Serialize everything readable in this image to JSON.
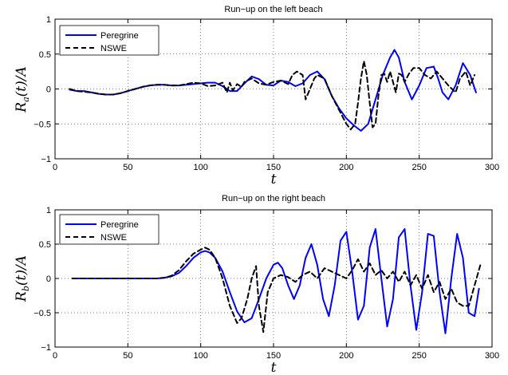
{
  "chart_data": [
    {
      "type": "line",
      "title": "Run−up on the left beach",
      "xlabel": "t",
      "ylabel": "R_a(t)/A",
      "xlim": [
        0,
        300
      ],
      "ylim": [
        -1,
        1
      ],
      "xticks": [
        0,
        50,
        100,
        150,
        200,
        250,
        300
      ],
      "xtick_labels": [
        "0",
        "50",
        "100",
        "150",
        "200",
        "250",
        "300"
      ],
      "yticks": [
        -1,
        -0.5,
        0,
        0.5,
        1
      ],
      "ytick_labels": [
        "−1",
        "−0.5",
        "0",
        "0.5",
        "1"
      ],
      "grid": true,
      "legend_position": "top-left",
      "series": [
        {
          "name": "Peregrine",
          "color": "#0000ff",
          "style": "solid",
          "x": [
            10,
            15,
            20,
            25,
            30,
            35,
            40,
            45,
            50,
            55,
            60,
            65,
            70,
            75,
            80,
            85,
            90,
            95,
            100,
            105,
            110,
            115,
            120,
            125,
            130,
            135,
            140,
            145,
            150,
            155,
            160,
            165,
            170,
            175,
            180,
            185,
            190,
            195,
            200,
            205,
            210,
            215,
            220,
            225,
            230,
            233,
            236,
            240,
            245,
            250,
            255,
            260,
            263,
            266,
            270,
            275,
            280,
            285,
            289
          ],
          "y": [
            -0.01,
            -0.03,
            -0.03,
            -0.05,
            -0.07,
            -0.08,
            -0.08,
            -0.06,
            -0.03,
            0.0,
            0.03,
            0.05,
            0.06,
            0.06,
            0.05,
            0.05,
            0.06,
            0.07,
            0.08,
            0.09,
            0.09,
            0.04,
            -0.03,
            -0.03,
            0.08,
            0.18,
            0.14,
            0.06,
            0.05,
            0.12,
            0.1,
            0.04,
            0.08,
            0.2,
            0.25,
            0.14,
            -0.1,
            -0.28,
            -0.42,
            -0.52,
            -0.6,
            -0.5,
            -0.15,
            0.2,
            0.45,
            0.56,
            0.45,
            0.1,
            -0.15,
            0.05,
            0.3,
            0.32,
            0.15,
            -0.05,
            -0.15,
            0.05,
            0.37,
            0.2,
            -0.05
          ]
        },
        {
          "name": "NSWE",
          "color": "#000000",
          "style": "dashed",
          "x": [
            10,
            15,
            20,
            25,
            30,
            35,
            40,
            45,
            50,
            55,
            60,
            65,
            70,
            75,
            80,
            85,
            90,
            95,
            100,
            105,
            110,
            115,
            118,
            120,
            122,
            125,
            128,
            130,
            135,
            140,
            145,
            150,
            155,
            160,
            163,
            166,
            170,
            172,
            175,
            178,
            180,
            185,
            190,
            195,
            200,
            203,
            206,
            208,
            210,
            212,
            214,
            216,
            218,
            220,
            222,
            224,
            226,
            228,
            230,
            232,
            234,
            236,
            238,
            240,
            243,
            246,
            250,
            254,
            258,
            262,
            266,
            270,
            275,
            278,
            282,
            285,
            288
          ],
          "y": [
            0.0,
            -0.03,
            -0.04,
            -0.05,
            -0.07,
            -0.08,
            -0.08,
            -0.06,
            -0.03,
            0.0,
            0.03,
            0.05,
            0.06,
            0.06,
            0.05,
            0.05,
            0.07,
            0.09,
            0.08,
            0.04,
            0.05,
            0.09,
            -0.05,
            0.09,
            -0.02,
            0.07,
            0.03,
            0.1,
            0.15,
            0.08,
            0.06,
            0.1,
            0.12,
            0.07,
            0.2,
            0.25,
            0.2,
            -0.15,
            0.0,
            0.15,
            0.2,
            0.15,
            -0.1,
            -0.3,
            -0.5,
            -0.58,
            -0.5,
            -0.2,
            0.15,
            0.4,
            0.2,
            -0.2,
            -0.55,
            -0.5,
            -0.1,
            0.2,
            0.22,
            0.1,
            0.25,
            0.1,
            -0.05,
            0.22,
            0.2,
            0.1,
            0.22,
            0.3,
            0.3,
            0.2,
            0.15,
            0.25,
            0.15,
            0.05,
            -0.05,
            0.15,
            0.25,
            0.05,
            0.2
          ]
        }
      ]
    },
    {
      "type": "line",
      "title": "Run−up on the right beach",
      "xlabel": "t",
      "ylabel": "R_b(t)/A",
      "xlim": [
        0,
        300
      ],
      "ylim": [
        -1,
        1
      ],
      "xticks": [
        0,
        50,
        100,
        150,
        200,
        250,
        300
      ],
      "xtick_labels": [
        "0",
        "50",
        "100",
        "150",
        "200",
        "250",
        "300"
      ],
      "yticks": [
        -1,
        -0.5,
        0,
        0.5,
        1
      ],
      "ytick_labels": [
        "−1",
        "−0.5",
        "0",
        "0.5",
        "1"
      ],
      "grid": true,
      "legend_position": "top-left",
      "series": [
        {
          "name": "Peregrine",
          "color": "#0000ff",
          "style": "solid",
          "x": [
            12,
            20,
            30,
            40,
            50,
            60,
            70,
            75,
            80,
            85,
            90,
            95,
            100,
            103,
            106,
            110,
            115,
            120,
            125,
            130,
            135,
            140,
            145,
            150,
            153,
            156,
            160,
            164,
            168,
            172,
            176,
            180,
            184,
            188,
            192,
            196,
            200,
            204,
            208,
            212,
            216,
            220,
            224,
            228,
            232,
            236,
            240,
            244,
            248,
            252,
            256,
            260,
            264,
            268,
            272,
            276,
            280,
            284,
            288,
            291
          ],
          "y": [
            0.0,
            0.0,
            0.0,
            0.0,
            0.0,
            0.0,
            0.0,
            0.01,
            0.03,
            0.08,
            0.18,
            0.3,
            0.38,
            0.4,
            0.38,
            0.3,
            0.1,
            -0.2,
            -0.48,
            -0.64,
            -0.58,
            -0.3,
            0.0,
            0.2,
            0.23,
            0.15,
            -0.1,
            -0.3,
            -0.1,
            0.3,
            0.5,
            0.2,
            -0.3,
            -0.55,
            -0.1,
            0.55,
            0.68,
            0.1,
            -0.6,
            -0.4,
            0.45,
            0.72,
            0.0,
            -0.7,
            -0.3,
            0.6,
            0.72,
            -0.1,
            -0.75,
            -0.2,
            0.65,
            0.62,
            -0.2,
            -0.8,
            0.0,
            0.65,
            0.3,
            -0.5,
            -0.55,
            -0.15
          ]
        },
        {
          "name": "NSWE",
          "color": "#000000",
          "style": "dashed",
          "x": [
            12,
            20,
            30,
            40,
            50,
            60,
            70,
            75,
            80,
            85,
            90,
            95,
            100,
            103,
            106,
            110,
            115,
            120,
            125,
            128,
            132,
            135,
            138,
            140,
            143,
            146,
            150,
            155,
            160,
            165,
            170,
            175,
            180,
            185,
            190,
            195,
            200,
            204,
            208,
            212,
            216,
            220,
            224,
            228,
            232,
            236,
            240,
            244,
            248,
            252,
            256,
            260,
            264,
            268,
            272,
            276,
            280,
            284,
            288,
            292
          ],
          "y": [
            0.0,
            0.0,
            0.0,
            0.0,
            0.0,
            0.0,
            0.0,
            0.01,
            0.04,
            0.12,
            0.25,
            0.36,
            0.42,
            0.45,
            0.42,
            0.3,
            0.0,
            -0.4,
            -0.65,
            -0.58,
            -0.3,
            0.0,
            0.18,
            -0.4,
            -0.78,
            -0.2,
            0.0,
            0.05,
            0.02,
            -0.05,
            0.05,
            0.1,
            0.0,
            0.15,
            0.1,
            0.05,
            0.0,
            0.12,
            0.28,
            0.1,
            0.22,
            0.05,
            0.12,
            0.0,
            0.1,
            -0.05,
            0.1,
            -0.1,
            0.05,
            -0.15,
            0.05,
            -0.2,
            -0.05,
            -0.3,
            -0.15,
            -0.35,
            -0.4,
            -0.4,
            -0.1,
            0.2
          ]
        }
      ]
    }
  ]
}
